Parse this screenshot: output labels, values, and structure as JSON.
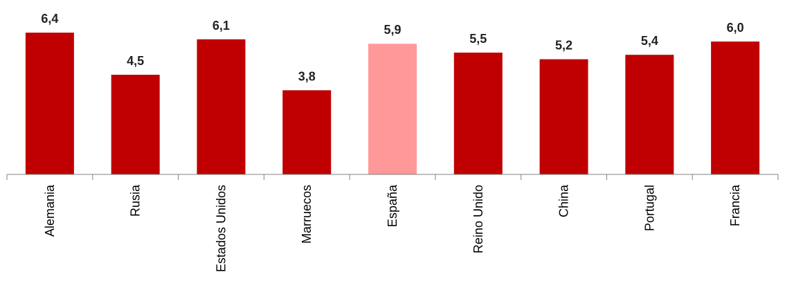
{
  "chart_data": {
    "type": "bar",
    "categories": [
      "Alemania",
      "Rusia",
      "Estados Unidos",
      "Marruecos",
      "España",
      "Reino Unido",
      "China",
      "Portugal",
      "Francia"
    ],
    "values": [
      6.4,
      4.5,
      6.1,
      3.8,
      5.9,
      5.5,
      5.2,
      5.4,
      6.0
    ],
    "value_labels": [
      "6,4",
      "4,5",
      "6,1",
      "3,8",
      "5,9",
      "5,5",
      "5,2",
      "5,4",
      "6,0"
    ],
    "highlight_category": "España",
    "colors": {
      "bar": "#C00000",
      "highlight": "#FF9999",
      "axis": "#808080"
    },
    "title": "",
    "xlabel": "",
    "ylabel": "",
    "ylim": [
      0,
      7
    ],
    "grid": false,
    "legend": "none"
  }
}
